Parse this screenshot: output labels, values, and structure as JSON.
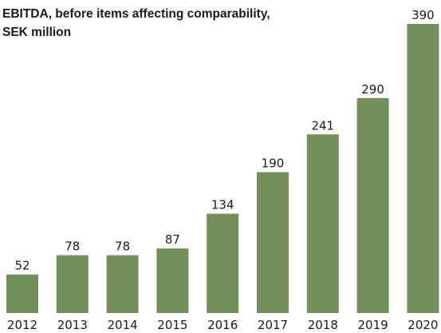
{
  "chart_data": {
    "type": "bar",
    "title": "EBITDA, before items affecting comparability,\nSEK million",
    "categories": [
      "2012",
      "2013",
      "2014",
      "2015",
      "2016",
      "2017",
      "2018",
      "2019",
      "2020"
    ],
    "values": [
      52,
      78,
      78,
      87,
      134,
      190,
      241,
      290,
      390
    ],
    "data_labels": [
      "52",
      "78",
      "78",
      "87",
      "134",
      "190",
      "241",
      "290",
      "390"
    ],
    "xlabel": "",
    "ylabel": "",
    "ylim": [
      0,
      390
    ],
    "grid": false,
    "legend": "none",
    "bar_color": "#73905a"
  }
}
